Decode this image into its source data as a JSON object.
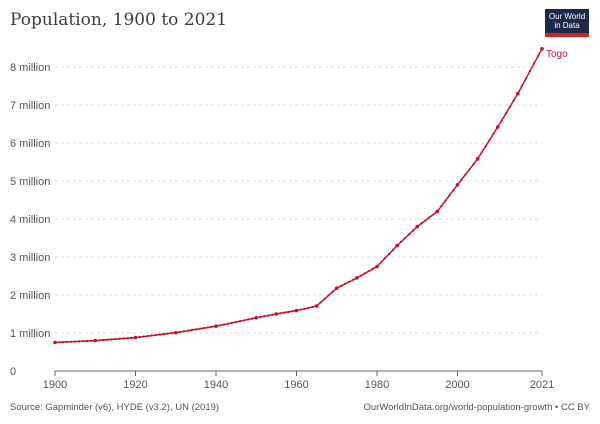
{
  "header": {
    "title": "Population, 1900 to 2021",
    "logo_line1": "Our World",
    "logo_line2": "in Data"
  },
  "footer": {
    "source": "Source: Gapminder (v6), HYDE (v3.2), UN (2019)",
    "url": "OurWorldInData.org/world-population-growth • CC BY"
  },
  "colors": {
    "series": "#c0132b",
    "grid": "#dddddd",
    "axis": "#666666",
    "text": "#555555"
  },
  "chart_data": {
    "type": "line",
    "title": "Population, 1900 to 2021",
    "xlabel": "",
    "ylabel": "",
    "xlim": [
      1900,
      2021
    ],
    "ylim": [
      0,
      8500000
    ],
    "x_ticks": [
      {
        "value": 1900,
        "label": "1900"
      },
      {
        "value": 1920,
        "label": "1920"
      },
      {
        "value": 1940,
        "label": "1940"
      },
      {
        "value": 1960,
        "label": "1960"
      },
      {
        "value": 1980,
        "label": "1980"
      },
      {
        "value": 2000,
        "label": "2000"
      },
      {
        "value": 2021,
        "label": "2021"
      }
    ],
    "y_ticks": [
      {
        "value": 0,
        "label": "0"
      },
      {
        "value": 1000000,
        "label": "1 million"
      },
      {
        "value": 2000000,
        "label": "2 million"
      },
      {
        "value": 3000000,
        "label": "3 million"
      },
      {
        "value": 4000000,
        "label": "4 million"
      },
      {
        "value": 5000000,
        "label": "5 million"
      },
      {
        "value": 6000000,
        "label": "6 million"
      },
      {
        "value": 7000000,
        "label": "7 million"
      },
      {
        "value": 8000000,
        "label": "8 million"
      }
    ],
    "grid": true,
    "series": [
      {
        "name": "Togo",
        "color": "#c0132b",
        "x": [
          1900,
          1910,
          1920,
          1930,
          1940,
          1950,
          1955,
          1960,
          1965,
          1970,
          1975,
          1980,
          1985,
          1990,
          1995,
          2000,
          2005,
          2010,
          2015,
          2021
        ],
        "values": [
          750000,
          800000,
          880000,
          1010000,
          1180000,
          1400000,
          1500000,
          1590000,
          1710000,
          2180000,
          2450000,
          2750000,
          3300000,
          3800000,
          4200000,
          4900000,
          5580000,
          6420000,
          7300000,
          8480000
        ]
      }
    ]
  }
}
